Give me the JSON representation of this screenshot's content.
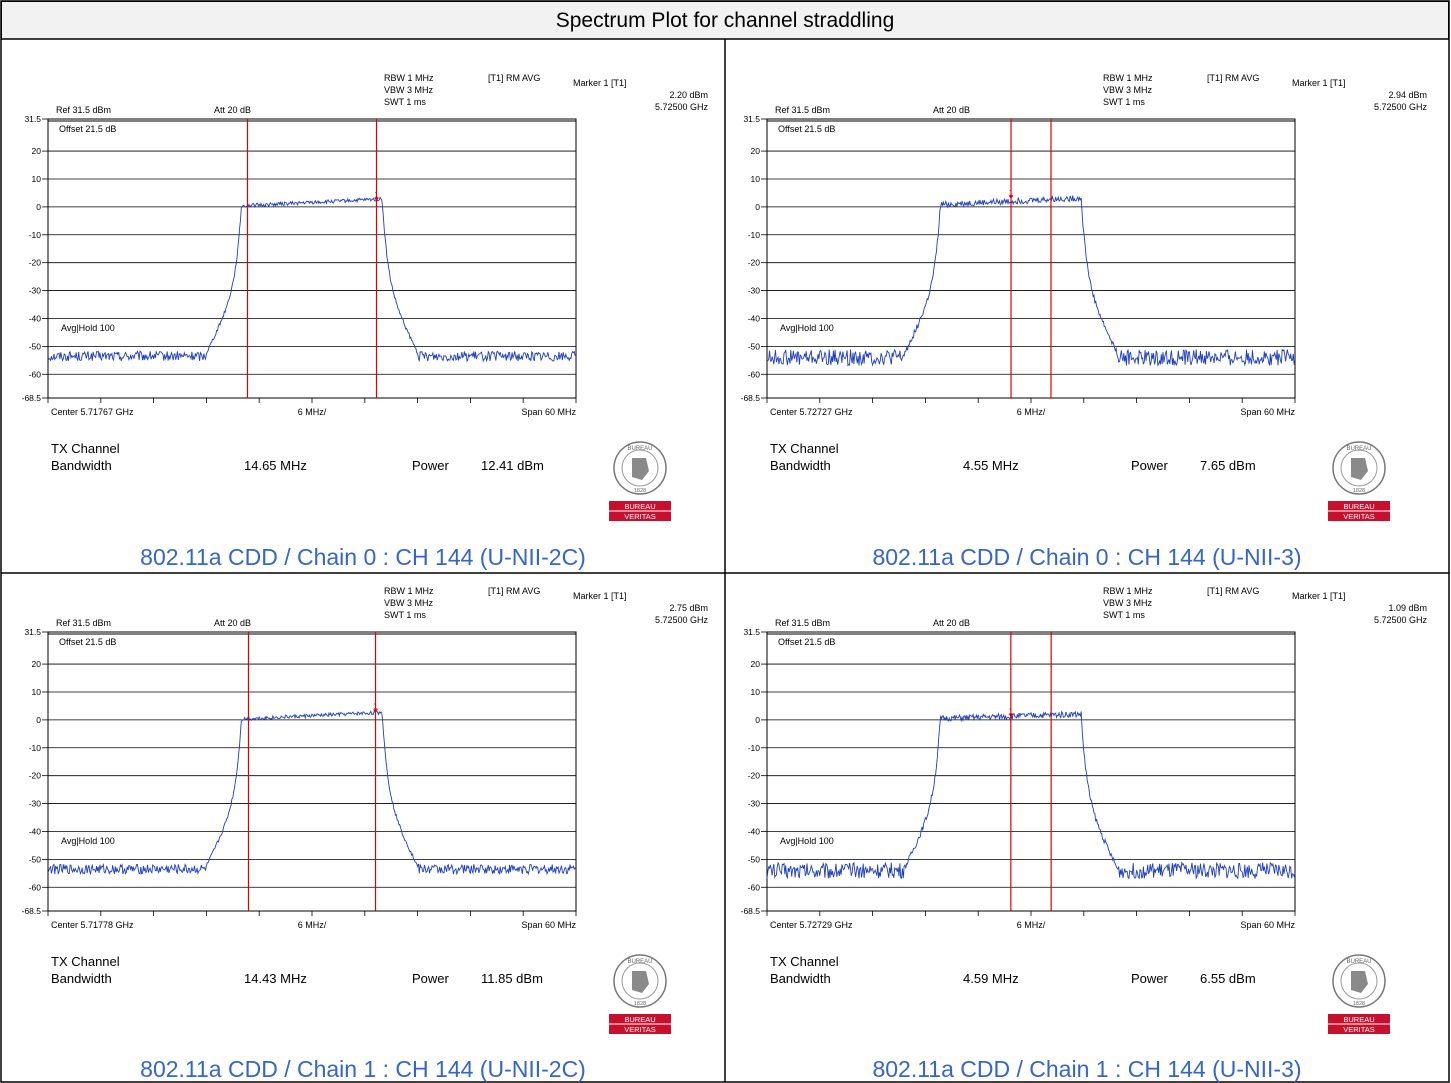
{
  "title": "Spectrum Plot for channel straddling",
  "colors": {
    "trace": "#1f3fbf",
    "marker_line": "#e00000",
    "caption": "#3366cc",
    "logo_red": "#c8102e"
  },
  "logo": {
    "text_top": "BUREAU",
    "text_bottom": "VERITAS",
    "year": "1828"
  },
  "chart_data": [
    {
      "type": "line",
      "caption": "802.11a CDD / Chain 0 : CH 144 (U-NII-2C)",
      "ref": "Ref 31.5 dBm",
      "att": "Att 20 dB",
      "rbw": "RBW 1 MHz",
      "vbw": "VBW 3 MHz",
      "swt": "SWT 1 ms",
      "trace_mode": "[T1] RM AVG",
      "marker_label": "Marker 1 [T1]",
      "marker_level": "2.20 dBm",
      "marker_freq": "5.72500 GHz",
      "offset": "Offset 21.5 dB",
      "avg_hold": "Avg|Hold 100",
      "center": "Center 5.71767 GHz",
      "div": "6 MHz/",
      "span": "Span 60 MHz",
      "ylim": [
        -68.5,
        31.5
      ],
      "yticks": [
        "31.5",
        "20",
        "10",
        "0",
        "-10",
        "-20",
        "-30",
        "-40",
        "-50",
        "-60",
        "-68.5"
      ],
      "ytick_values": [
        31.5,
        20,
        10,
        0,
        -10,
        -20,
        -30,
        -40,
        -50,
        -60,
        -68.5
      ],
      "xlim": [
        -30,
        30
      ],
      "tx_label1": "TX Channel",
      "tx_label2": "Bandwidth",
      "bandwidth": "14.65 MHz",
      "power_label": "Power",
      "power": "12.41 dBm",
      "lines_x": [
        -7.33,
        7.33
      ],
      "marker_x": 7.33,
      "shape": {
        "center": 0,
        "half": 8.0,
        "skirt": 2.6,
        "top": 1.6,
        "tilt": 0.15,
        "floor": -53.5,
        "noise": 1.1
      }
    },
    {
      "type": "line",
      "caption": "802.11a CDD / Chain 0 : CH 144 (U-NII-3)",
      "ref": "Ref 31.5 dBm",
      "att": "Att 20 dB",
      "rbw": "RBW 1 MHz",
      "vbw": "VBW 3 MHz",
      "swt": "SWT 1 ms",
      "trace_mode": "[T1] RM AVG",
      "marker_label": "Marker 1 [T1]",
      "marker_level": "2.94 dBm",
      "marker_freq": "5.72500 GHz",
      "offset": "Offset 21.5 dB",
      "avg_hold": "Avg|Hold 100",
      "center": "Center 5.72727 GHz",
      "div": "6 MHz/",
      "span": "Span 60 MHz",
      "ylim": [
        -68.5,
        31.5
      ],
      "yticks": [
        "31.5",
        "20",
        "10",
        "0",
        "-10",
        "-20",
        "-30",
        "-40",
        "-50",
        "-60",
        "-68.5"
      ],
      "ytick_values": [
        31.5,
        20,
        10,
        0,
        -10,
        -20,
        -30,
        -40,
        -50,
        -60,
        -68.5
      ],
      "xlim": [
        -30,
        30
      ],
      "tx_label1": "TX Channel",
      "tx_label2": "Bandwidth",
      "bandwidth": "4.55 MHz",
      "power_label": "Power",
      "power": "7.65 dBm",
      "lines_x": [
        -2.27,
        2.27
      ],
      "marker_x": -2.27,
      "shape": {
        "center": -2.27,
        "half": 8.0,
        "skirt": 3.4,
        "top": 2.0,
        "tilt": 0.15,
        "floor": -54,
        "noise": 1.8
      }
    },
    {
      "type": "line",
      "caption": "802.11a CDD / Chain 1 : CH 144 (U-NII-2C)",
      "ref": "Ref 31.5 dBm",
      "att": "Att 20 dB",
      "rbw": "RBW 1 MHz",
      "vbw": "VBW 3 MHz",
      "swt": "SWT 1 ms",
      "trace_mode": "[T1] RM AVG",
      "marker_label": "Marker 1 [T1]",
      "marker_level": "2.75 dBm",
      "marker_freq": "5.72500 GHz",
      "offset": "Offset 21.5 dB",
      "avg_hold": "Avg|Hold 100",
      "center": "Center 5.71778 GHz",
      "div": "6 MHz/",
      "span": "Span 60 MHz",
      "ylim": [
        -68.5,
        31.5
      ],
      "yticks": [
        "31.5",
        "20",
        "10",
        "0",
        "-10",
        "-20",
        "-30",
        "-40",
        "-50",
        "-60",
        "-68.5"
      ],
      "ytick_values": [
        31.5,
        20,
        10,
        0,
        -10,
        -20,
        -30,
        -40,
        -50,
        -60,
        -68.5
      ],
      "xlim": [
        -30,
        30
      ],
      "tx_label1": "TX Channel",
      "tx_label2": "Bandwidth",
      "bandwidth": "14.43 MHz",
      "power_label": "Power",
      "power": "11.85 dBm",
      "lines_x": [
        -7.22,
        7.22
      ],
      "marker_x": 7.22,
      "shape": {
        "center": 0,
        "half": 8.0,
        "skirt": 2.6,
        "top": 1.5,
        "tilt": 0.15,
        "floor": -53.5,
        "noise": 1.1
      }
    },
    {
      "type": "line",
      "caption": "802.11a CDD / Chain 1 : CH 144 (U-NII-3)",
      "ref": "Ref 31.5 dBm",
      "att": "Att 20 dB",
      "rbw": "RBW 1 MHz",
      "vbw": "VBW 3 MHz",
      "swt": "SWT 1 ms",
      "trace_mode": "[T1] RM AVG",
      "marker_label": "Marker 1 [T1]",
      "marker_level": "1.09 dBm",
      "marker_freq": "5.72500 GHz",
      "offset": "Offset 21.5 dB",
      "avg_hold": "Avg|Hold 100",
      "center": "Center 5.72729 GHz",
      "div": "6 MHz/",
      "span": "Span 60 MHz",
      "ylim": [
        -68.5,
        31.5
      ],
      "yticks": [
        "31.5",
        "20",
        "10",
        "0",
        "-10",
        "-20",
        "-30",
        "-40",
        "-50",
        "-60",
        "-68.5"
      ],
      "ytick_values": [
        31.5,
        20,
        10,
        0,
        -10,
        -20,
        -30,
        -40,
        -50,
        -60,
        -68.5
      ],
      "xlim": [
        -30,
        30
      ],
      "tx_label1": "TX Channel",
      "tx_label2": "Bandwidth",
      "bandwidth": "4.59 MHz",
      "power_label": "Power",
      "power": "6.55 dBm",
      "lines_x": [
        -2.29,
        2.29
      ],
      "marker_x": -2.29,
      "shape": {
        "center": -2.29,
        "half": 8.0,
        "skirt": 3.4,
        "top": 1.3,
        "tilt": 0.1,
        "floor": -54,
        "noise": 1.8
      }
    }
  ]
}
